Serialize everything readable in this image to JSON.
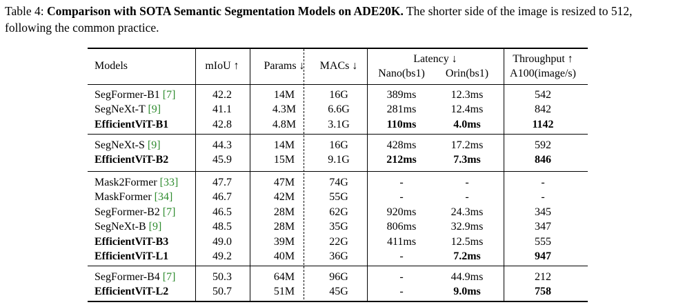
{
  "caption": {
    "label": "Table 4:",
    "title": "Comparison with SOTA Semantic Segmentation Models on ADE20K.",
    "text": "The shorter side of the image is resized to 512, following the common practice."
  },
  "headers": {
    "models": "Models",
    "miou": "mIoU ↑",
    "params": "Params ↓",
    "macs": "MACs ↓",
    "latency": "Latency ↓",
    "nano": "Nano(bs1)",
    "orin": "Orin(bs1)",
    "throughput": "Throughput ↑",
    "a100": "A100(image/s)"
  },
  "groups": [
    {
      "rows": [
        {
          "name": "SegFormer-B1",
          "ref": "[7]",
          "bold": false,
          "miou": "42.2",
          "params": "14M",
          "macs": "16G",
          "nano": "389ms",
          "orin": "12.3ms",
          "tput": "542",
          "bold_nano": false,
          "bold_orin": false,
          "bold_tput": false
        },
        {
          "name": "SegNeXt-T",
          "ref": "[9]",
          "bold": false,
          "miou": "41.1",
          "params": "4.3M",
          "macs": "6.6G",
          "nano": "281ms",
          "orin": "12.4ms",
          "tput": "842",
          "bold_nano": false,
          "bold_orin": false,
          "bold_tput": false
        },
        {
          "name": "EfficientViT-B1",
          "ref": "",
          "bold": true,
          "miou": "42.8",
          "params": "4.8M",
          "macs": "3.1G",
          "nano": "110ms",
          "orin": "4.0ms",
          "tput": "1142",
          "bold_nano": true,
          "bold_orin": true,
          "bold_tput": true
        }
      ]
    },
    {
      "rows": [
        {
          "name": "SegNeXt-S",
          "ref": "[9]",
          "bold": false,
          "miou": "44.3",
          "params": "14M",
          "macs": "16G",
          "nano": "428ms",
          "orin": "17.2ms",
          "tput": "592",
          "bold_nano": false,
          "bold_orin": false,
          "bold_tput": false
        },
        {
          "name": "EfficientViT-B2",
          "ref": "",
          "bold": true,
          "miou": "45.9",
          "params": "15M",
          "macs": "9.1G",
          "nano": "212ms",
          "orin": "7.3ms",
          "tput": "846",
          "bold_nano": true,
          "bold_orin": true,
          "bold_tput": true
        }
      ]
    },
    {
      "rows": [
        {
          "name": "Mask2Former",
          "ref": "[33]",
          "bold": false,
          "miou": "47.7",
          "params": "47M",
          "macs": "74G",
          "nano": "-",
          "orin": "-",
          "tput": "-",
          "bold_nano": false,
          "bold_orin": false,
          "bold_tput": false
        },
        {
          "name": "MaskFormer",
          "ref": "[34]",
          "bold": false,
          "miou": "46.7",
          "params": "42M",
          "macs": "55G",
          "nano": "-",
          "orin": "-",
          "tput": "-",
          "bold_nano": false,
          "bold_orin": false,
          "bold_tput": false
        },
        {
          "name": "SegFormer-B2",
          "ref": "[7]",
          "bold": false,
          "miou": "46.5",
          "params": "28M",
          "macs": "62G",
          "nano": "920ms",
          "orin": "24.3ms",
          "tput": "345",
          "bold_nano": false,
          "bold_orin": false,
          "bold_tput": false
        },
        {
          "name": "SegNeXt-B",
          "ref": "[9]",
          "bold": false,
          "miou": "48.5",
          "params": "28M",
          "macs": "35G",
          "nano": "806ms",
          "orin": "32.9ms",
          "tput": "347",
          "bold_nano": false,
          "bold_orin": false,
          "bold_tput": false
        },
        {
          "name": "EfficientViT-B3",
          "ref": "",
          "bold": true,
          "miou": "49.0",
          "params": "39M",
          "macs": "22G",
          "nano": "411ms",
          "orin": "12.5ms",
          "tput": "555",
          "bold_nano": false,
          "bold_orin": false,
          "bold_tput": false
        },
        {
          "name": "EfficientViT-L1",
          "ref": "",
          "bold": true,
          "miou": "49.2",
          "params": "40M",
          "macs": "36G",
          "nano": "-",
          "orin": "7.2ms",
          "tput": "947",
          "bold_nano": false,
          "bold_orin": true,
          "bold_tput": true
        }
      ]
    },
    {
      "rows": [
        {
          "name": "SegFormer-B4",
          "ref": "[7]",
          "bold": false,
          "miou": "50.3",
          "params": "64M",
          "macs": "96G",
          "nano": "-",
          "orin": "44.9ms",
          "tput": "212",
          "bold_nano": false,
          "bold_orin": false,
          "bold_tput": false
        },
        {
          "name": "EfficientViT-L2",
          "ref": "",
          "bold": true,
          "miou": "50.7",
          "params": "51M",
          "macs": "45G",
          "nano": "-",
          "orin": "9.0ms",
          "tput": "758",
          "bold_nano": false,
          "bold_orin": true,
          "bold_tput": true
        }
      ]
    }
  ]
}
